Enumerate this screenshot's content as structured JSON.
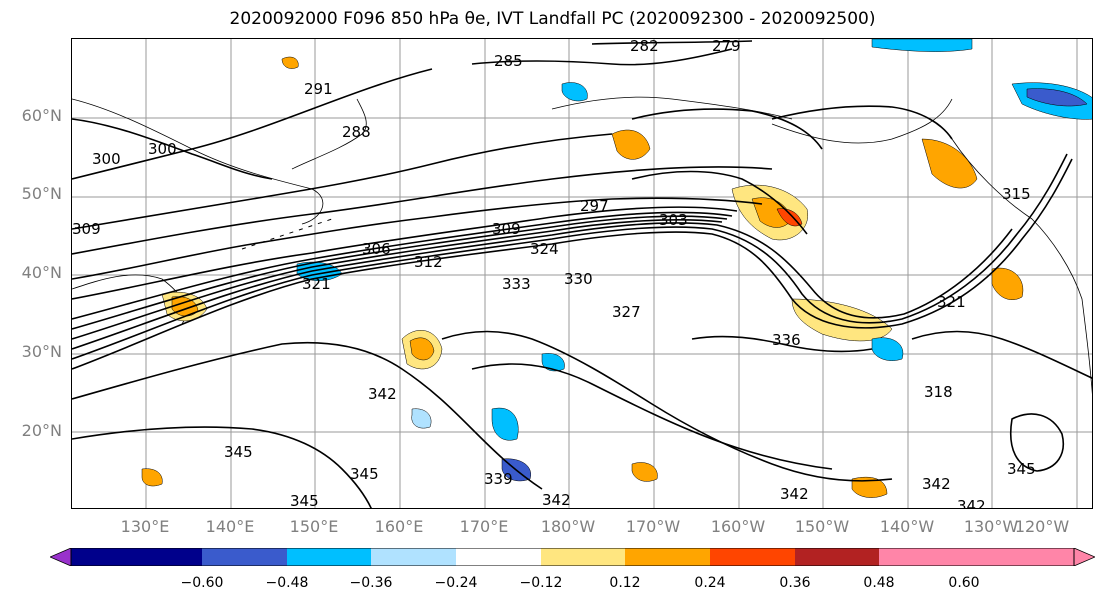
{
  "title": "2020092000 F096 850 hPa θe, IVT Landfall PC (2020092300 - 2020092500)",
  "lat_labels": [
    "60°N",
    "50°N",
    "40°N",
    "30°N",
    "20°N"
  ],
  "lon_labels": [
    "130°E",
    "140°E",
    "150°E",
    "160°E",
    "170°E",
    "180°W",
    "170°W",
    "160°W",
    "150°W",
    "140°W",
    "130°W",
    "120°W"
  ],
  "contour_labels": [
    "282",
    "279",
    "285",
    "291",
    "288",
    "300",
    "306",
    "309",
    "297",
    "303",
    "312",
    "324",
    "333",
    "330",
    "321",
    "327",
    "336",
    "321",
    "318",
    "345",
    "342",
    "345",
    "345",
    "339",
    "342",
    "342",
    "342",
    "345",
    "342",
    "300",
    "309",
    "315"
  ],
  "colorbar": {
    "ticks": [
      "−0.60",
      "−0.48",
      "−0.36",
      "−0.24",
      "−0.12",
      "0.12",
      "0.24",
      "0.36",
      "0.48",
      "0.60"
    ],
    "colors": [
      "#9932cc",
      "#00008b",
      "#3a5bcc",
      "#00bfff",
      "#b0e2ff",
      "#ffffff",
      "#ffe680",
      "#ffa500",
      "#ff4500",
      "#b22222",
      "#ff85a8"
    ]
  },
  "shading_colors": {
    "neg_light": "#b0e2ff",
    "neg_mid": "#00bfff",
    "neg_dark": "#3a5bcc",
    "pos_light": "#ffe680",
    "pos_mid": "#ffa500",
    "pos_dark": "#ff4500"
  }
}
